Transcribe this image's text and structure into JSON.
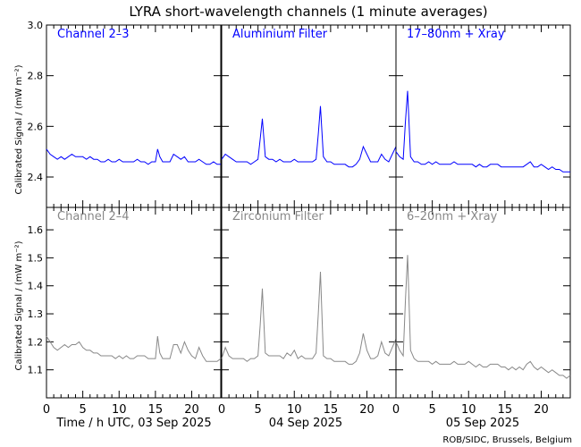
{
  "chart_data": {
    "type": "line",
    "title": "LYRA short-wavelength channels (1 minute averages)",
    "ylabel_top": "Calibrated Signal / (mW m⁻²)",
    "ylabel_bottom": "Calibrated Signal / (mW m⁻²)",
    "xlabel_day1": "Time / h UTC, 03 Sep 2025",
    "xlabel_day2": "04 Sep 2025",
    "xlabel_day3": "05 Sep 2025",
    "credit": "ROB/SIDC, Brussels, Belgium",
    "xlim": [
      0,
      24
    ],
    "x_ticks": [
      "0",
      "5",
      "10",
      "15",
      "20"
    ],
    "top_row": {
      "ylim": [
        2.28,
        3.0
      ],
      "y_ticks": [
        "2.4",
        "2.6",
        "2.8",
        "3.0"
      ],
      "color": "#0000ff",
      "panels": [
        {
          "label": "Channel 2–3",
          "x": [
            0,
            0.5,
            1,
            1.5,
            2,
            2.5,
            3,
            3.5,
            4,
            4.5,
            5,
            5.5,
            6,
            6.5,
            7,
            7.5,
            8,
            8.5,
            9,
            9.5,
            10,
            10.5,
            11,
            11.5,
            12,
            12.5,
            13,
            13.5,
            14,
            14.5,
            15,
            15.3,
            15.6,
            16,
            16.5,
            17,
            17.5,
            18,
            18.5,
            19,
            19.5,
            20,
            20.5,
            21,
            21.5,
            22,
            22.5,
            23,
            23.5,
            24
          ],
          "y": [
            2.51,
            2.49,
            2.48,
            2.47,
            2.48,
            2.47,
            2.48,
            2.49,
            2.48,
            2.48,
            2.48,
            2.47,
            2.48,
            2.47,
            2.47,
            2.46,
            2.46,
            2.47,
            2.46,
            2.46,
            2.47,
            2.46,
            2.46,
            2.46,
            2.46,
            2.47,
            2.46,
            2.46,
            2.45,
            2.46,
            2.46,
            2.51,
            2.48,
            2.46,
            2.46,
            2.46,
            2.49,
            2.48,
            2.47,
            2.48,
            2.46,
            2.46,
            2.46,
            2.47,
            2.46,
            2.45,
            2.45,
            2.46,
            2.45,
            2.45
          ]
        },
        {
          "label": "Aluminium Filter",
          "x": [
            0,
            0.5,
            1,
            1.5,
            2,
            2.5,
            3,
            3.5,
            4,
            4.5,
            5,
            5.3,
            5.6,
            6,
            6.5,
            7,
            7.5,
            8,
            8.5,
            9,
            9.5,
            10,
            10.5,
            11,
            11.5,
            12,
            12.5,
            13,
            13.3,
            13.6,
            14,
            14.5,
            15,
            15.5,
            16,
            16.5,
            17,
            17.5,
            18,
            18.5,
            19,
            19.5,
            20,
            20.5,
            21,
            21.5,
            22,
            22.5,
            23,
            23.5,
            24
          ],
          "y": [
            2.47,
            2.49,
            2.48,
            2.47,
            2.46,
            2.46,
            2.46,
            2.46,
            2.45,
            2.46,
            2.47,
            2.55,
            2.63,
            2.48,
            2.47,
            2.47,
            2.46,
            2.47,
            2.46,
            2.46,
            2.46,
            2.47,
            2.46,
            2.46,
            2.46,
            2.46,
            2.46,
            2.47,
            2.57,
            2.68,
            2.48,
            2.46,
            2.46,
            2.45,
            2.45,
            2.45,
            2.45,
            2.44,
            2.44,
            2.45,
            2.47,
            2.52,
            2.49,
            2.46,
            2.46,
            2.46,
            2.49,
            2.47,
            2.46,
            2.49,
            2.52
          ]
        },
        {
          "label": "17–80nm + Xray",
          "x": [
            0,
            0.5,
            1,
            1.3,
            1.6,
            2,
            2.5,
            3,
            3.5,
            4,
            4.5,
            5,
            5.5,
            6,
            6.5,
            7,
            7.5,
            8,
            8.5,
            9,
            9.5,
            10,
            10.5,
            11,
            11.5,
            12,
            12.5,
            13,
            13.5,
            14,
            14.5,
            15,
            15.5,
            16,
            16.5,
            17,
            17.5,
            18,
            18.5,
            19,
            19.5,
            20,
            20.5,
            21,
            21.5,
            22,
            22.5,
            23,
            23.5,
            24
          ],
          "y": [
            2.5,
            2.48,
            2.47,
            2.62,
            2.74,
            2.48,
            2.46,
            2.46,
            2.45,
            2.45,
            2.46,
            2.45,
            2.46,
            2.45,
            2.45,
            2.45,
            2.45,
            2.46,
            2.45,
            2.45,
            2.45,
            2.45,
            2.45,
            2.44,
            2.45,
            2.44,
            2.44,
            2.45,
            2.45,
            2.45,
            2.44,
            2.44,
            2.44,
            2.44,
            2.44,
            2.44,
            2.44,
            2.45,
            2.46,
            2.44,
            2.44,
            2.45,
            2.44,
            2.43,
            2.44,
            2.43,
            2.43,
            2.42,
            2.42,
            2.42
          ]
        }
      ]
    },
    "bottom_row": {
      "ylim": [
        1.0,
        1.68
      ],
      "y_ticks": [
        "1.1",
        "1.2",
        "1.3",
        "1.4",
        "1.5",
        "1.6"
      ],
      "color": "#888888",
      "panels": [
        {
          "label": "Channel 2–4",
          "x": [
            0,
            0.5,
            1,
            1.5,
            2,
            2.5,
            3,
            3.5,
            4,
            4.5,
            5,
            5.5,
            6,
            6.5,
            7,
            7.5,
            8,
            8.5,
            9,
            9.5,
            10,
            10.5,
            11,
            11.5,
            12,
            12.5,
            13,
            13.5,
            14,
            14.5,
            15,
            15.3,
            15.6,
            16,
            16.5,
            17,
            17.5,
            18,
            18.5,
            19,
            19.5,
            20,
            20.5,
            21,
            21.5,
            22,
            22.5,
            23,
            23.5,
            24
          ],
          "y": [
            1.22,
            1.2,
            1.18,
            1.17,
            1.18,
            1.19,
            1.18,
            1.19,
            1.19,
            1.2,
            1.18,
            1.17,
            1.17,
            1.16,
            1.16,
            1.15,
            1.15,
            1.15,
            1.15,
            1.14,
            1.15,
            1.14,
            1.15,
            1.14,
            1.14,
            1.15,
            1.15,
            1.15,
            1.14,
            1.14,
            1.14,
            1.22,
            1.16,
            1.14,
            1.14,
            1.14,
            1.19,
            1.19,
            1.16,
            1.2,
            1.17,
            1.15,
            1.14,
            1.18,
            1.15,
            1.13,
            1.13,
            1.13,
            1.13,
            1.14
          ]
        },
        {
          "label": "Zirconium Filter",
          "x": [
            0,
            0.5,
            1,
            1.5,
            2,
            2.5,
            3,
            3.5,
            4,
            4.5,
            5,
            5.3,
            5.6,
            6,
            6.5,
            7,
            7.5,
            8,
            8.5,
            9,
            9.5,
            10,
            10.5,
            11,
            11.5,
            12,
            12.5,
            13,
            13.3,
            13.6,
            14,
            14.5,
            15,
            15.5,
            16,
            16.5,
            17,
            17.5,
            18,
            18.5,
            19,
            19.5,
            20,
            20.5,
            21,
            21.5,
            22,
            22.5,
            23,
            23.5,
            24
          ],
          "y": [
            1.14,
            1.18,
            1.15,
            1.14,
            1.14,
            1.14,
            1.14,
            1.13,
            1.14,
            1.14,
            1.15,
            1.26,
            1.39,
            1.16,
            1.15,
            1.15,
            1.15,
            1.15,
            1.14,
            1.16,
            1.15,
            1.17,
            1.14,
            1.15,
            1.14,
            1.14,
            1.14,
            1.16,
            1.3,
            1.45,
            1.15,
            1.14,
            1.14,
            1.13,
            1.13,
            1.13,
            1.13,
            1.12,
            1.12,
            1.13,
            1.16,
            1.23,
            1.17,
            1.14,
            1.14,
            1.15,
            1.2,
            1.16,
            1.15,
            1.18,
            1.21
          ]
        },
        {
          "label": "6–20nm + Xray",
          "x": [
            0,
            0.5,
            1,
            1.3,
            1.6,
            2,
            2.5,
            3,
            3.5,
            4,
            4.5,
            5,
            5.5,
            6,
            6.5,
            7,
            7.5,
            8,
            8.5,
            9,
            9.5,
            10,
            10.5,
            11,
            11.5,
            12,
            12.5,
            13,
            13.5,
            14,
            14.5,
            15,
            15.5,
            16,
            16.5,
            17,
            17.5,
            18,
            18.5,
            19,
            19.5,
            20,
            20.5,
            21,
            21.5,
            22,
            22.5,
            23,
            23.5,
            24
          ],
          "y": [
            1.2,
            1.17,
            1.15,
            1.35,
            1.51,
            1.17,
            1.14,
            1.13,
            1.13,
            1.13,
            1.13,
            1.12,
            1.13,
            1.12,
            1.12,
            1.12,
            1.12,
            1.13,
            1.12,
            1.12,
            1.12,
            1.13,
            1.12,
            1.11,
            1.12,
            1.11,
            1.11,
            1.12,
            1.12,
            1.12,
            1.11,
            1.11,
            1.1,
            1.11,
            1.1,
            1.11,
            1.1,
            1.12,
            1.13,
            1.11,
            1.1,
            1.11,
            1.1,
            1.09,
            1.1,
            1.09,
            1.08,
            1.08,
            1.07,
            1.08
          ]
        }
      ]
    }
  }
}
